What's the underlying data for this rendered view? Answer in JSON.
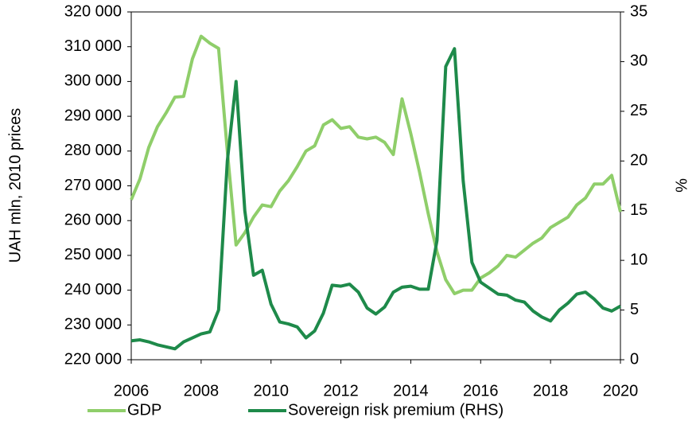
{
  "chart_data": {
    "type": "line",
    "y_label": "UAH mln, 2010 prices",
    "y2_label": "%",
    "x": [
      2006,
      2006.25,
      2006.5,
      2006.75,
      2007,
      2007.25,
      2007.5,
      2007.75,
      2008,
      2008.25,
      2008.5,
      2008.75,
      2009,
      2009.25,
      2009.5,
      2009.75,
      2010,
      2010.25,
      2010.5,
      2010.75,
      2011,
      2011.25,
      2011.5,
      2011.75,
      2012,
      2012.25,
      2012.5,
      2012.75,
      2013,
      2013.25,
      2013.5,
      2013.75,
      2014,
      2014.25,
      2014.5,
      2014.75,
      2015,
      2015.25,
      2015.5,
      2015.75,
      2016,
      2016.25,
      2016.5,
      2016.75,
      2017,
      2017.25,
      2017.5,
      2017.75,
      2018,
      2018.25,
      2018.5,
      2018.75,
      2019,
      2019.25,
      2019.5,
      2019.75,
      2020
    ],
    "xlim": [
      2006,
      2020
    ],
    "xticks": [
      2006,
      2008,
      2010,
      2012,
      2014,
      2016,
      2018,
      2020
    ],
    "ylim": [
      220000,
      320000
    ],
    "yticks": [
      {
        "value": 220000,
        "label": "220 000"
      },
      {
        "value": 230000,
        "label": "230 000"
      },
      {
        "value": 240000,
        "label": "240 000"
      },
      {
        "value": 250000,
        "label": "250 000"
      },
      {
        "value": 260000,
        "label": "260 000"
      },
      {
        "value": 270000,
        "label": "270 000"
      },
      {
        "value": 280000,
        "label": "280 000"
      },
      {
        "value": 290000,
        "label": "290 000"
      },
      {
        "value": 300000,
        "label": "300 000"
      },
      {
        "value": 310000,
        "label": "310 000"
      },
      {
        "value": 320000,
        "label": "320 000"
      }
    ],
    "y2lim": [
      0,
      35
    ],
    "y2ticks": [
      0,
      5,
      10,
      15,
      20,
      25,
      30,
      35
    ],
    "grid": false,
    "legend": "bottom",
    "series": [
      {
        "name": "GDP",
        "color": "#8fce6a",
        "values": [
          266000,
          272000,
          281000,
          287000,
          291000,
          295500,
          295700,
          306500,
          313000,
          311000,
          309500,
          280000,
          253000,
          256500,
          261000,
          264500,
          264000,
          268500,
          271500,
          275500,
          280000,
          281500,
          287500,
          289000,
          286500,
          287000,
          284000,
          283500,
          284000,
          282500,
          279000,
          295000,
          285000,
          274000,
          262000,
          251000,
          243000,
          239000,
          240000,
          240000,
          243500,
          245000,
          247000,
          250000,
          249500,
          251500,
          253500,
          255000,
          258000,
          259500,
          261000,
          264500,
          266500,
          270500,
          270500,
          273000,
          262500
        ]
      },
      {
        "name": "Sovereign risk premium (RHS)",
        "color": "#1e8a4a",
        "axis": "y2",
        "values": [
          1.9,
          2.0,
          1.8,
          1.5,
          1.3,
          1.1,
          1.8,
          2.2,
          2.6,
          2.8,
          5.0,
          20,
          28,
          15,
          8.5,
          9.0,
          5.6,
          3.8,
          3.6,
          3.3,
          2.2,
          2.9,
          4.7,
          7.5,
          7.4,
          7.6,
          6.8,
          5.2,
          4.6,
          5.3,
          6.8,
          7.3,
          7.4,
          7.1,
          7.1,
          12,
          29.5,
          31.3,
          18,
          9.8,
          7.8,
          7.2,
          6.6,
          6.5,
          6.0,
          5.8,
          4.9,
          4.3,
          3.9,
          5.0,
          5.7,
          6.6,
          6.8,
          6.1,
          5.2,
          4.9,
          5.4
        ]
      }
    ]
  }
}
